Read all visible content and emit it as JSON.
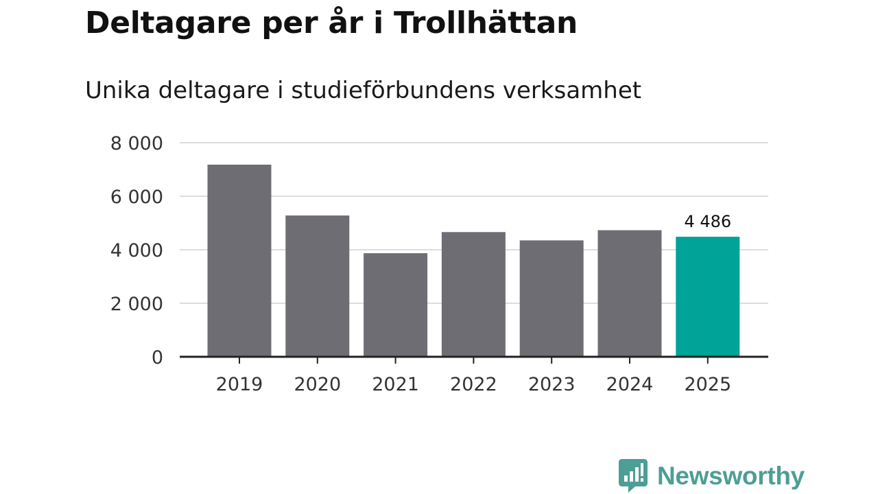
{
  "header": {
    "title": "Deltagare per år i Trollhättan",
    "subtitle": "Unika deltagare i studieförbundens verksamhet"
  },
  "chart_data": {
    "type": "bar",
    "title": "Deltagare per år i Trollhättan",
    "subtitle": "Unika deltagare i studieförbundens verksamhet",
    "categories": [
      "2019",
      "2020",
      "2021",
      "2022",
      "2023",
      "2024",
      "2025"
    ],
    "values": [
      7180,
      5280,
      3870,
      4660,
      4350,
      4730,
      4486
    ],
    "ylim": [
      0,
      8000
    ],
    "yticks": [
      0,
      2000,
      4000,
      6000,
      8000
    ],
    "ytick_labels": [
      "0",
      "2 000",
      "4 000",
      "6 000",
      "8 000"
    ],
    "highlight_index": 6,
    "highlight_label": "4 486",
    "grid": true,
    "xlabel": "",
    "ylabel": ""
  },
  "colors": {
    "bar": "#6e6d73",
    "highlight": "#00a398",
    "grid": "#dddddd",
    "axis": "#222222",
    "brand": "#4d9e95"
  },
  "brand": {
    "name": "Newsworthy",
    "icon": "newsworthy-logo-icon"
  }
}
